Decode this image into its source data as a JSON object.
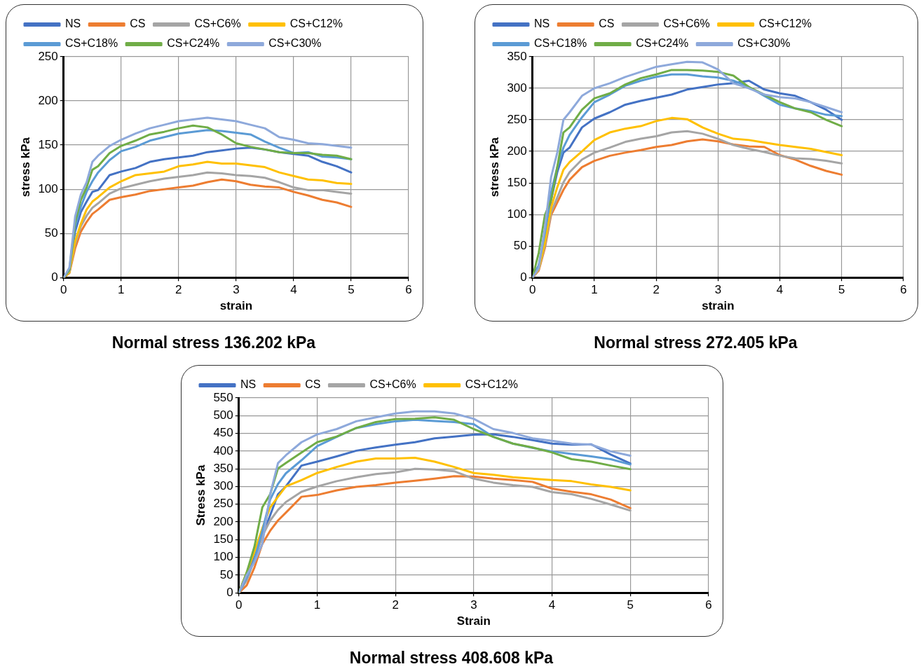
{
  "chart_data": [
    {
      "type": "line",
      "title": "Normal stress 136.202 kPa",
      "xlabel": "strain",
      "ylabel": "stress kPa",
      "xlim": [
        0,
        6
      ],
      "xticks": [
        0,
        1,
        2,
        3,
        4,
        5,
        6
      ],
      "ylim": [
        0,
        250
      ],
      "yticks": [
        0,
        50,
        100,
        150,
        200,
        250
      ],
      "grid": true,
      "legend": "top",
      "marker": "none",
      "line_style": "solid",
      "x": [
        0,
        0.1,
        0.2,
        0.3,
        0.4,
        0.5,
        0.6,
        0.8,
        1,
        1.25,
        1.5,
        1.75,
        2,
        2.25,
        2.5,
        2.75,
        3,
        3.25,
        3.5,
        3.75,
        4,
        4.25,
        4.5,
        4.75,
        5
      ],
      "series": [
        {
          "name": "NS",
          "color": "#4472c4",
          "values": [
            0,
            8,
            52,
            74,
            86,
            97,
            99,
            116,
            120,
            124,
            131,
            134,
            136,
            138,
            142,
            144,
            146,
            147,
            145,
            142,
            140,
            138,
            131,
            126,
            119
          ]
        },
        {
          "name": "CS",
          "color": "#ed7d31",
          "values": [
            0,
            5,
            33,
            52,
            63,
            72,
            77,
            88,
            91,
            94,
            98,
            100,
            102,
            104,
            108,
            111,
            109,
            105,
            103,
            102,
            97,
            93,
            88,
            85,
            80
          ]
        },
        {
          "name": "CS+C6%",
          "color": "#a5a5a5",
          "values": [
            0,
            6,
            38,
            58,
            70,
            79,
            84,
            95,
            101,
            105,
            109,
            112,
            114,
            116,
            119,
            118,
            116,
            115,
            113,
            108,
            102,
            99,
            99,
            97,
            95
          ]
        },
        {
          "name": "CS+C12%",
          "color": "#ffc000",
          "values": [
            0,
            6,
            41,
            61,
            77,
            86,
            91,
            102,
            109,
            116,
            118,
            120,
            126,
            128,
            131,
            129,
            129,
            127,
            125,
            119,
            115,
            111,
            110,
            107,
            106
          ]
        },
        {
          "name": "CS+C18%",
          "color": "#5b9bd5",
          "values": [
            0,
            8,
            58,
            80,
            97,
            109,
            119,
            133,
            143,
            148,
            155,
            159,
            163,
            165,
            167,
            166,
            164,
            162,
            154,
            147,
            141,
            142,
            137,
            136,
            134
          ]
        },
        {
          "name": "CS+C24%",
          "color": "#70ad47",
          "values": [
            0,
            9,
            63,
            88,
            102,
            122,
            126,
            141,
            149,
            155,
            162,
            165,
            169,
            172,
            170,
            162,
            152,
            148,
            145,
            142,
            141,
            141,
            139,
            138,
            134
          ]
        },
        {
          "name": "CS+C30%",
          "color": "#8ea9db",
          "values": [
            0,
            11,
            69,
            94,
            108,
            131,
            138,
            149,
            156,
            163,
            169,
            173,
            177,
            179,
            181,
            179,
            177,
            173,
            169,
            159,
            156,
            152,
            151,
            149,
            147
          ]
        }
      ]
    },
    {
      "type": "line",
      "title": "Normal stress 272.405 kPa",
      "xlabel": "strain",
      "ylabel": "stress kPa",
      "xlim": [
        0,
        6
      ],
      "xticks": [
        0,
        1,
        2,
        3,
        4,
        5,
        6
      ],
      "ylim": [
        0,
        350
      ],
      "yticks": [
        0,
        50,
        100,
        150,
        200,
        250,
        300,
        350
      ],
      "grid": true,
      "legend": "top",
      "marker": "none",
      "line_style": "solid",
      "x": [
        0,
        0.1,
        0.2,
        0.3,
        0.4,
        0.5,
        0.6,
        0.8,
        1,
        1.25,
        1.5,
        1.75,
        2,
        2.25,
        2.5,
        2.75,
        3,
        3.25,
        3.5,
        3.75,
        4,
        4.25,
        4.5,
        4.75,
        5
      ],
      "series": [
        {
          "name": "NS",
          "color": "#4472c4",
          "values": [
            0,
            19,
            55,
            123,
            167,
            198,
            206,
            238,
            252,
            262,
            274,
            280,
            285,
            290,
            298,
            302,
            306,
            308,
            312,
            298,
            292,
            288,
            278,
            266,
            250
          ]
        },
        {
          "name": "CS",
          "color": "#ed7d31",
          "values": [
            0,
            11,
            47,
            99,
            119,
            139,
            155,
            175,
            185,
            193,
            198,
            202,
            207,
            210,
            216,
            219,
            216,
            211,
            208,
            207,
            194,
            187,
            177,
            169,
            163
          ]
        },
        {
          "name": "CS+C6%",
          "color": "#a5a5a5",
          "values": [
            0,
            13,
            51,
            103,
            127,
            151,
            167,
            187,
            198,
            206,
            215,
            220,
            224,
            230,
            232,
            228,
            220,
            210,
            204,
            199,
            193,
            189,
            188,
            185,
            181
          ]
        },
        {
          "name": "CS+C12%",
          "color": "#ffc000",
          "values": [
            0,
            14,
            55,
            111,
            143,
            171,
            183,
            200,
            218,
            230,
            236,
            240,
            248,
            253,
            251,
            238,
            228,
            220,
            218,
            214,
            210,
            207,
            204,
            199,
            194
          ]
        },
        {
          "name": "CS+C18%",
          "color": "#5b9bd5",
          "values": [
            0,
            19,
            71,
            135,
            175,
            206,
            226,
            254,
            278,
            290,
            304,
            312,
            318,
            322,
            322,
            319,
            317,
            312,
            302,
            288,
            274,
            268,
            264,
            258,
            256
          ]
        },
        {
          "name": "CS+C24%",
          "color": "#70ad47",
          "values": [
            0,
            39,
            99,
            123,
            175,
            230,
            238,
            266,
            284,
            292,
            306,
            316,
            322,
            329,
            329,
            328,
            326,
            320,
            302,
            290,
            278,
            268,
            262,
            250,
            240
          ]
        },
        {
          "name": "CS+C30%",
          "color": "#8ea9db",
          "values": [
            0,
            15,
            79,
            159,
            198,
            250,
            262,
            288,
            300,
            308,
            318,
            326,
            334,
            338,
            342,
            341,
            330,
            308,
            300,
            290,
            286,
            284,
            278,
            270,
            262
          ]
        }
      ]
    },
    {
      "type": "line",
      "title": "Normal stress 408.608 kPa",
      "xlabel": "Strain",
      "ylabel": "Stress kPa",
      "xlim": [
        0,
        6
      ],
      "xticks": [
        0,
        1,
        2,
        3,
        4,
        5,
        6
      ],
      "ylim": [
        0,
        550
      ],
      "yticks": [
        0,
        50,
        100,
        150,
        200,
        250,
        300,
        350,
        400,
        450,
        500,
        550
      ],
      "grid": true,
      "legend": "top",
      "marker": "none",
      "line_style": "solid",
      "x": [
        0,
        0.1,
        0.2,
        0.3,
        0.4,
        0.5,
        0.6,
        0.8,
        1,
        1.25,
        1.5,
        1.75,
        2,
        2.25,
        2.5,
        2.75,
        3,
        3.25,
        3.5,
        3.75,
        4,
        4.25,
        4.5,
        4.75,
        5
      ],
      "series": [
        {
          "name": "NS",
          "color": "#4472c4",
          "values": [
            0,
            43,
            101,
            160,
            219,
            278,
            300,
            359,
            370,
            385,
            401,
            410,
            418,
            425,
            436,
            441,
            446,
            447,
            440,
            431,
            421,
            418,
            419,
            390,
            365
          ]
        },
        {
          "name": "CS",
          "color": "#ed7d31",
          "values": [
            0,
            21,
            72,
            138,
            175,
            204,
            226,
            271,
            276,
            289,
            299,
            304,
            311,
            316,
            322,
            329,
            328,
            322,
            318,
            313,
            294,
            285,
            278,
            263,
            239
          ]
        },
        {
          "name": "CS+C6%",
          "color": "#a5a5a5",
          "values": [
            0,
            35,
            94,
            160,
            204,
            234,
            256,
            285,
            300,
            315,
            326,
            335,
            340,
            350,
            348,
            343,
            322,
            311,
            304,
            299,
            284,
            278,
            265,
            249,
            232
          ]
        },
        {
          "name": "CS+C12%",
          "color": "#ffc000",
          "values": [
            0,
            57,
            116,
            182,
            241,
            271,
            300,
            318,
            338,
            355,
            370,
            379,
            379,
            381,
            370,
            355,
            338,
            333,
            326,
            322,
            318,
            315,
            306,
            299,
            289
          ]
        },
        {
          "color": "#5b9bd5",
          "values": [
            0,
            43,
            94,
            175,
            263,
            307,
            337,
            374,
            414,
            440,
            465,
            476,
            484,
            488,
            485,
            482,
            476,
            440,
            421,
            409,
            399,
            392,
            385,
            377,
            362
          ]
        },
        {
          "color": "#70ad47",
          "values": [
            0,
            57,
            131,
            241,
            278,
            351,
            366,
            396,
            425,
            441,
            465,
            482,
            490,
            491,
            495,
            488,
            462,
            440,
            421,
            410,
            396,
            377,
            370,
            359,
            349
          ]
        },
        {
          "color": "#8ea9db",
          "values": [
            0,
            50,
            87,
            138,
            278,
            366,
            388,
            425,
            447,
            462,
            484,
            495,
            506,
            512,
            512,
            506,
            491,
            462,
            451,
            436,
            429,
            421,
            418,
            399,
            387
          ]
        }
      ]
    }
  ]
}
